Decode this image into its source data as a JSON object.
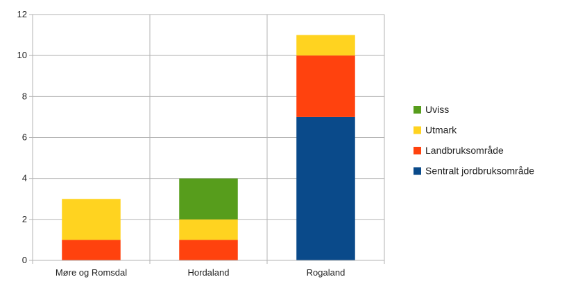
{
  "chart_data": {
    "type": "bar",
    "stacked": true,
    "title": "",
    "xlabel": "",
    "ylabel": "",
    "categories": [
      "Møre og Romsdal",
      "Hordaland",
      "Rogaland"
    ],
    "ylim": [
      0,
      12
    ],
    "yticks": [
      0,
      2,
      4,
      6,
      8,
      10,
      12
    ],
    "grid": true,
    "legend_position": "right",
    "series": [
      {
        "name": "Sentralt jordbruksområde",
        "color": "#0a4a8a",
        "values": [
          0,
          0,
          7
        ]
      },
      {
        "name": "Landbruksområde",
        "color": "#ff420e",
        "values": [
          1,
          1,
          3
        ]
      },
      {
        "name": "Utmark",
        "color": "#ffd320",
        "values": [
          2,
          1,
          1
        ]
      },
      {
        "name": "Uviss",
        "color": "#579d1c",
        "values": [
          0,
          2,
          0
        ]
      }
    ]
  }
}
